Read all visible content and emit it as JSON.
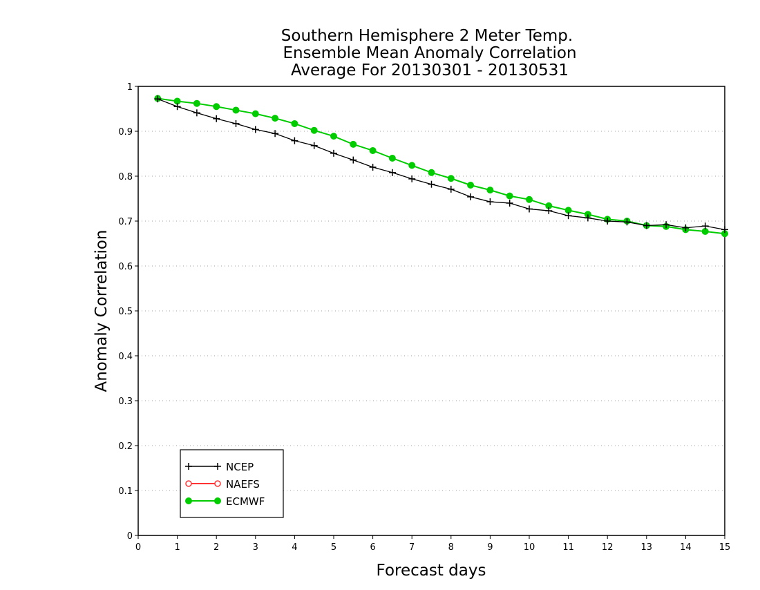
{
  "chart_data": {
    "type": "line",
    "title_lines": [
      "Southern Hemisphere 2 Meter Temp.",
      "Ensemble Mean Anomaly Correlation",
      "Average For 20130301 - 20130531"
    ],
    "xlabel": "Forecast days",
    "ylabel": "Anomaly Correlation",
    "xlim": [
      0,
      15
    ],
    "ylim": [
      0,
      1
    ],
    "xticks": [
      "0",
      "1",
      "2",
      "3",
      "4",
      "5",
      "6",
      "7",
      "8",
      "9",
      "10",
      "11",
      "12",
      "13",
      "14",
      "15"
    ],
    "yticks": [
      "0",
      "0.1",
      "0.2",
      "0.3",
      "0.4",
      "0.5",
      "0.6",
      "0.7",
      "0.8",
      "0.9",
      "1"
    ],
    "grid": "horizontal dotted",
    "legend_position": "bottom-left",
    "series": [
      {
        "name": "NCEP",
        "color": "#000000",
        "marker": "plus",
        "x": [
          0.5,
          1,
          1.5,
          2,
          2.5,
          3,
          3.5,
          4,
          4.5,
          5,
          5.5,
          6,
          6.5,
          7,
          7.5,
          8,
          8.5,
          9,
          9.5,
          10,
          10.5,
          11,
          11.5,
          12,
          12.5,
          13,
          13.5,
          14,
          14.5,
          15
        ],
        "values": [
          0.972,
          0.955,
          0.941,
          0.928,
          0.917,
          0.904,
          0.895,
          0.879,
          0.868,
          0.851,
          0.836,
          0.82,
          0.808,
          0.794,
          0.782,
          0.771,
          0.754,
          0.743,
          0.74,
          0.727,
          0.723,
          0.712,
          0.707,
          0.7,
          0.698,
          0.69,
          0.692,
          0.685,
          0.689,
          0.681
        ]
      },
      {
        "name": "NAEFS",
        "color": "#ff3333",
        "marker": "open-circle",
        "x": [],
        "values": []
      },
      {
        "name": "ECMWF",
        "color": "#00cc00",
        "marker": "filled-circle",
        "x": [
          0.5,
          1,
          1.5,
          2,
          2.5,
          3,
          3.5,
          4,
          4.5,
          5,
          5.5,
          6,
          6.5,
          7,
          7.5,
          8,
          8.5,
          9,
          9.5,
          10,
          10.5,
          11,
          11.5,
          12,
          12.5,
          13,
          13.5,
          14,
          14.5,
          15
        ],
        "values": [
          0.973,
          0.967,
          0.962,
          0.955,
          0.947,
          0.939,
          0.929,
          0.917,
          0.902,
          0.889,
          0.871,
          0.857,
          0.84,
          0.824,
          0.808,
          0.795,
          0.78,
          0.769,
          0.756,
          0.748,
          0.734,
          0.724,
          0.715,
          0.704,
          0.7,
          0.69,
          0.688,
          0.681,
          0.677,
          0.672
        ]
      }
    ]
  }
}
